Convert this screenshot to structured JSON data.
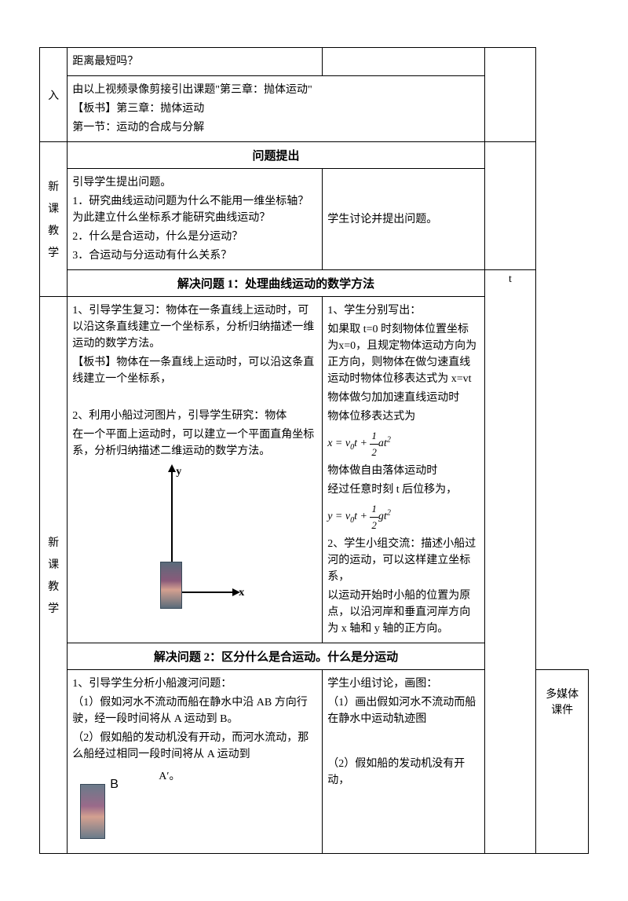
{
  "row1": {
    "label": "入",
    "left": "距离最短吗？",
    "right": ""
  },
  "row2": {
    "left_p1": "由以上视频录像剪接引出课题\"第三章：抛体运动\"",
    "left_p2": "【板书】第三章：抛体运动",
    "left_p3": "第一节：运动的合成与分解"
  },
  "header1": "问题提出",
  "row3": {
    "left_p1": "引导学生提出问题。",
    "left_p2": "1．研究曲线运动问题为什么不能用一维坐标轴？为此建立什么坐标系才能研究曲线运动？",
    "left_p3": "2．什么是合运动，什么是分运动？",
    "left_p4": "3．合运动与分运动有什么关系？",
    "right": "学生讨论并提出问题。"
  },
  "labelA": "新课教学",
  "header2": "解决问题 1：处理曲线运动的数学方法",
  "rightT": "t",
  "row4": {
    "left_p1": "1、引导学生复习：物体在一条直线上运动时，可以沿这条直线建立一个坐标系，分析归纳描述一维运动的数学方法。",
    "left_p2": "【板书】物体在一条直线上运动时，可以沿这条直线建立一个坐标系，",
    "left_p3": "2、利用小船过河图片，引导学生研究：物体",
    "left_p4": "在一个平面上运动时，可以建立一个平面直角坐标系，分析归纳描述二维运动的数学方法。",
    "right_p1": "1、学生分别写出：",
    "right_p2": "如果取 t=0 时刻物体位置坐标为x=0，且规定物体运动方向为正方向，则物体在做匀速直线运动时物体位移表达式为 x=vt",
    "right_p3": "物体做匀加加速直线运动时",
    "right_p4": "物体位移表达式为",
    "right_p5": "物体做自由落体运动时",
    "right_p6": "经过任意时刻 t 后位移为，",
    "right_p7": "2、学生小组交流：描述小船过河的运动，可以这样建立坐标系，",
    "right_p8": "以运动开始时小船的位置为原点，以沿河岸和垂直河岸方向为 x 轴和 y 轴的正方向。"
  },
  "labelB": "新课教学",
  "header3": "解决问题 2：区分什么是合运动。什么是分运动",
  "row5": {
    "left_p1": "1、引导学生分析小船渡河问题：",
    "left_p2": "（1）假如河水不流动而船在静水中沿 AB 方向行驶，经一段时间将从 A 运动到 B。",
    "left_p3": "（2）假如船的发动机没有开动，而河水流动，那么船经过相同一段时间将从 A 运动到",
    "left_p4": "A′。",
    "right_p1": "学生小组讨论，画图：",
    "right_p2": "（1）画出假如河水不流动而船在静水中运动轨迹图",
    "right_p3": "（2）假如船的发动机没有开动，",
    "aux": "多媒体课件"
  },
  "y_label": "y",
  "x_label": "x",
  "b_label": "B"
}
